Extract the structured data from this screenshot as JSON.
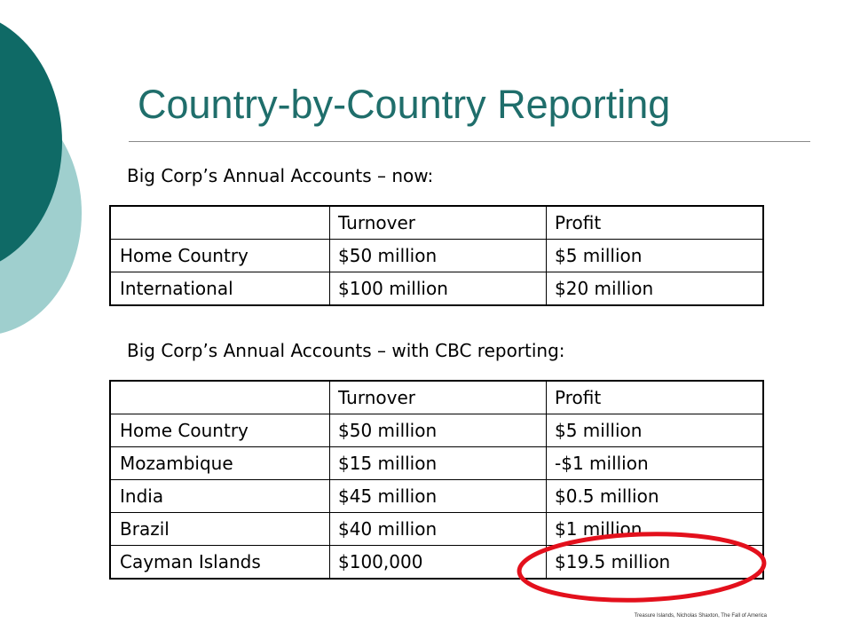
{
  "slide": {
    "title": "Country-by-Country Reporting",
    "colors": {
      "title": "#1f6e6b",
      "dark_teal": "#0f6a66",
      "light_teal": "#9fcfce",
      "highlight": "#e3101c"
    }
  },
  "table_now": {
    "caption": "Big Corp’s Annual Accounts – now:",
    "headers": [
      "",
      "Turnover",
      "Profit"
    ],
    "rows": [
      [
        "Home Country",
        "$50 million",
        "$5 million"
      ],
      [
        "International",
        "$100 million",
        "$20 million"
      ]
    ]
  },
  "table_cbc": {
    "caption": "Big Corp’s Annual Accounts – with CBC reporting:",
    "headers": [
      "",
      "Turnover",
      "Profit"
    ],
    "rows": [
      [
        "Home Country",
        "$50 million",
        "$5 million"
      ],
      [
        "Mozambique",
        "$15 million",
        "-$1 million"
      ],
      [
        "India",
        "$45 million",
        "$0.5 million"
      ],
      [
        "Brazil",
        "$40 million",
        "$1 million"
      ],
      [
        "Cayman Islands",
        "$100,000",
        "$19.5 million"
      ]
    ]
  },
  "source": "Treasure Islands, Nicholas Shaxton, The Fall of America"
}
